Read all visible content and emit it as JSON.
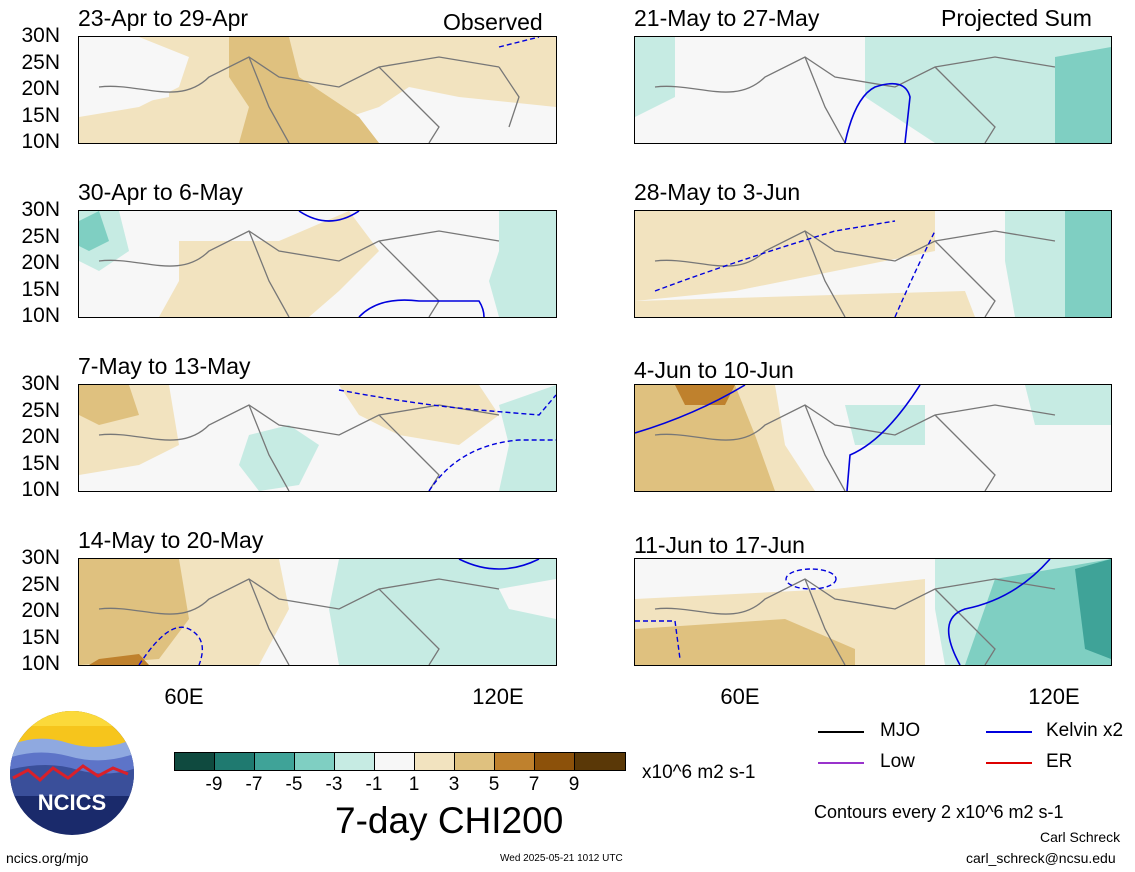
{
  "header": {
    "observed_label": "Observed",
    "projected_label": "Projected Sum"
  },
  "panels": [
    {
      "title": "23-Apr to 29-Apr"
    },
    {
      "title": "30-Apr to 6-May"
    },
    {
      "title": "7-May to 13-May"
    },
    {
      "title": "14-May to 20-May"
    },
    {
      "title": "21-May to 27-May"
    },
    {
      "title": "28-May to 3-Jun"
    },
    {
      "title": "4-Jun to 10-Jun"
    },
    {
      "title": "11-Jun to 17-Jun"
    }
  ],
  "chart_data": {
    "type": "heatmap",
    "title": "7-day CHI200",
    "units": "x10^6 m2 s-1",
    "lat_ticks": [
      "30N",
      "25N",
      "20N",
      "15N",
      "10N"
    ],
    "lon_ticks": [
      "60E",
      "120E"
    ],
    "colorbar": {
      "ticks": [
        "-9",
        "-7",
        "-5",
        "-3",
        "-1",
        "1",
        "3",
        "5",
        "7",
        "9"
      ],
      "colors": [
        "#0f4a3f",
        "#1f7a70",
        "#3fa398",
        "#7fcfc2",
        "#c6ebe3",
        "#f7f7f7",
        "#f2e3bf",
        "#dfc17f",
        "#bf812d",
        "#8c510a",
        "#5a3807"
      ]
    },
    "contour_note": "Contours every 2 x10^6 m2 s-1",
    "legend": [
      {
        "label": "MJO",
        "color": "#000000"
      },
      {
        "label": "Kelvin x2",
        "color": "#0000dd"
      },
      {
        "label": "Low",
        "color": "#9933cc"
      },
      {
        "label": "ER",
        "color": "#dd0000"
      }
    ]
  },
  "footer": {
    "logo_text": "NCICS",
    "url": "ncics.org/mjo",
    "timestamp": "Wed 2025-05-21 1012 UTC",
    "author": "Carl Schreck",
    "email": "carl_schreck@ncsu.edu"
  }
}
